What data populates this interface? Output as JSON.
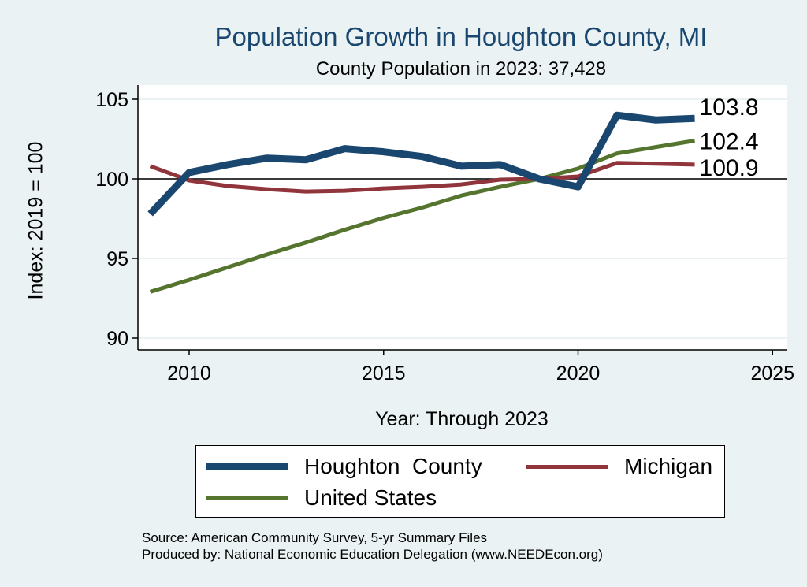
{
  "title": "Population Growth in Houghton County, MI",
  "subtitle": "County Population in 2023: 37,428",
  "chart_data": {
    "type": "line",
    "title": "Population Growth in Houghton County, MI",
    "subtitle": "County Population in 2023: 37,428",
    "xlabel": "Year: Through 2023",
    "ylabel": "Index: 2019 = 100",
    "xlim": [
      2009,
      2025
    ],
    "ylim": [
      89.2,
      106
    ],
    "xticks": [
      2010,
      2015,
      2020,
      2025
    ],
    "yticks": [
      90,
      95,
      100,
      105
    ],
    "reference_line": 100,
    "grid": true,
    "x": [
      2009,
      2010,
      2011,
      2012,
      2013,
      2014,
      2015,
      2016,
      2017,
      2018,
      2019,
      2020,
      2021,
      2022,
      2023
    ],
    "series": [
      {
        "name": "Houghton  County",
        "color": "#1a476f",
        "width": 9,
        "end_label": "103.8",
        "values": [
          97.8,
          100.4,
          100.9,
          101.3,
          101.2,
          101.9,
          101.7,
          101.4,
          100.8,
          100.9,
          100.0,
          99.5,
          104.0,
          103.7,
          103.8
        ]
      },
      {
        "name": "Michigan",
        "color": "#90353b",
        "width": 5,
        "end_label": "100.9",
        "values": [
          100.8,
          99.9,
          99.55,
          99.35,
          99.2,
          99.25,
          99.4,
          99.5,
          99.65,
          99.95,
          100.0,
          100.15,
          101.0,
          100.95,
          100.9
        ]
      },
      {
        "name": "United States",
        "color": "#55752f",
        "width": 5,
        "end_label": "102.4",
        "values": [
          92.9,
          93.65,
          94.45,
          95.25,
          96.0,
          96.8,
          97.55,
          98.2,
          98.95,
          99.5,
          100.0,
          100.65,
          101.6,
          102.0,
          102.4
        ]
      }
    ],
    "legend_position": "bottom"
  },
  "source": "Source: American Community Survey, 5-yr Summary Files",
  "produced_by": "Produced by: National Economic Education Delegation (www.NEEDEcon.org)"
}
